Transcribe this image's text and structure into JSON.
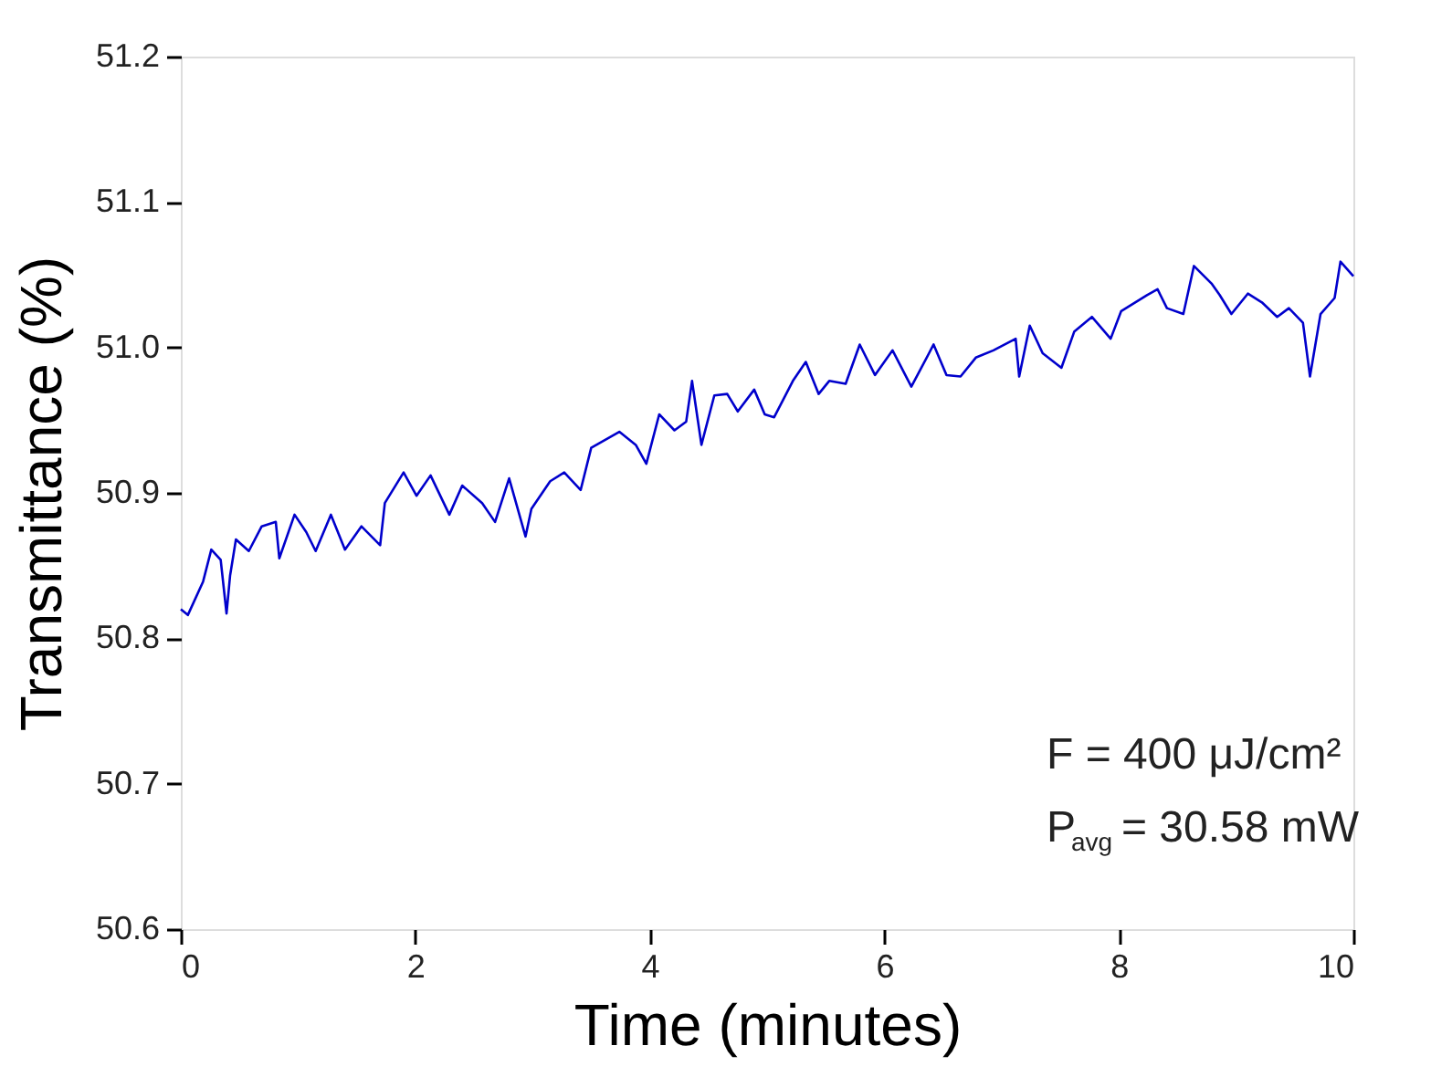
{
  "chart_data": {
    "type": "line",
    "xlabel": "Time (minutes)",
    "ylabel": "Transmittance (%)",
    "xlim": [
      0,
      10
    ],
    "xticks": [
      0,
      2,
      4,
      6,
      8,
      10
    ],
    "ylim": [
      50.6,
      51.2
    ],
    "yticks": [
      {
        "value": 50.6,
        "label": "50.6"
      },
      {
        "value": 50.7,
        "label": "50.7"
      },
      {
        "value": 50.8,
        "label": "50.8"
      },
      {
        "value": 50.9,
        "label": "50.9"
      },
      {
        "value": 51.0,
        "label": "51.0"
      },
      {
        "value": 51.1,
        "label": "51.1"
      },
      {
        "value": 51.2,
        "label": "51.2"
      }
    ],
    "grid": false,
    "marker": "none",
    "line_style": "solid",
    "annotations": [
      "F = 400 μJ/cm²",
      "P$_{avg}$ = 30.58 mW"
    ],
    "series": [
      {
        "color": "#0000cc",
        "x": [
          0,
          0.06,
          0.19,
          0.26,
          0.34,
          0.39,
          0.42,
          0.47,
          0.58,
          0.69,
          0.81,
          0.84,
          0.97,
          1.07,
          1.15,
          1.28,
          1.4,
          1.54,
          1.7,
          1.74,
          1.9,
          2.01,
          2.13,
          2.29,
          2.4,
          2.57,
          2.68,
          2.8,
          2.94,
          2.99,
          3.15,
          3.27,
          3.41,
          3.5,
          3.74,
          3.88,
          3.97,
          4.08,
          4.21,
          4.31,
          4.36,
          4.44,
          4.55,
          4.66,
          4.75,
          4.89,
          4.98,
          5.06,
          5.22,
          5.33,
          5.44,
          5.53,
          5.67,
          5.79,
          5.92,
          6.07,
          6.23,
          6.42,
          6.53,
          6.65,
          6.78,
          6.93,
          7.12,
          7.15,
          7.24,
          7.35,
          7.51,
          7.62,
          7.77,
          7.93,
          8.02,
          8.24,
          8.33,
          8.41,
          8.55,
          8.64,
          8.79,
          8.86,
          8.96,
          9.1,
          9.22,
          9.35,
          9.45,
          9.57,
          9.63,
          9.72,
          9.84,
          9.89,
          10.0
        ],
        "values": [
          50.82,
          50.816,
          50.839,
          50.861,
          50.854,
          50.817,
          50.843,
          50.868,
          50.86,
          50.877,
          50.88,
          50.855,
          50.885,
          50.873,
          50.86,
          50.885,
          50.861,
          50.877,
          50.864,
          50.893,
          50.914,
          50.898,
          50.912,
          50.885,
          50.905,
          50.893,
          50.88,
          50.91,
          50.87,
          50.889,
          50.908,
          50.914,
          50.902,
          50.931,
          50.942,
          50.933,
          50.92,
          50.954,
          50.943,
          50.949,
          50.977,
          50.933,
          50.967,
          50.968,
          50.956,
          50.971,
          50.954,
          50.952,
          50.977,
          50.99,
          50.968,
          50.977,
          50.975,
          51.002,
          50.981,
          50.998,
          50.973,
          51.002,
          50.981,
          50.98,
          50.993,
          50.998,
          51.006,
          50.98,
          51.015,
          50.996,
          50.986,
          51.011,
          51.021,
          51.006,
          51.025,
          51.036,
          51.04,
          51.027,
          51.023,
          51.056,
          51.044,
          51.036,
          51.023,
          51.037,
          51.031,
          51.021,
          51.027,
          51.017,
          50.98,
          51.023,
          51.034,
          51.059,
          51.049
        ]
      }
    ]
  }
}
